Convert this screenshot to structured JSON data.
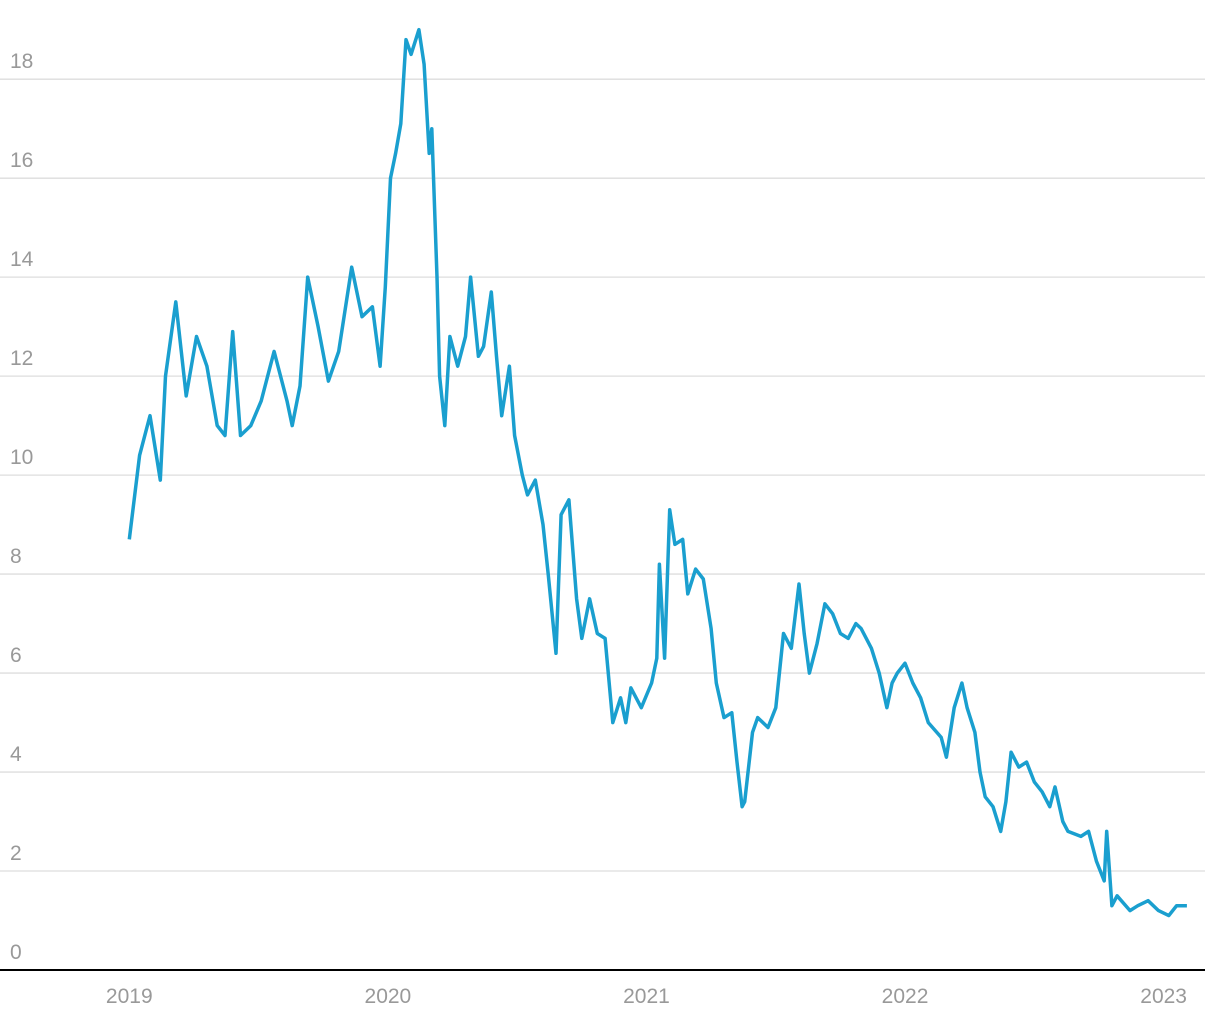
{
  "chart_data": {
    "type": "line",
    "color": "#1a9fcf",
    "grid": true,
    "xlim": [
      2018.5,
      2023.16
    ],
    "xticks": [
      2019,
      2020,
      2021,
      2022,
      2023
    ],
    "ylim": [
      0,
      19.6
    ],
    "yticks": [
      0,
      2,
      4,
      6,
      8,
      10,
      12,
      14,
      16,
      18
    ],
    "x": [
      2019.0,
      2019.04,
      2019.08,
      2019.12,
      2019.14,
      2019.18,
      2019.22,
      2019.26,
      2019.3,
      2019.34,
      2019.37,
      2019.4,
      2019.43,
      2019.47,
      2019.51,
      2019.56,
      2019.61,
      2019.63,
      2019.66,
      2019.69,
      2019.73,
      2019.77,
      2019.81,
      2019.86,
      2019.9,
      2019.94,
      2019.97,
      2019.99,
      2020.01,
      2020.03,
      2020.05,
      2020.07,
      2020.09,
      2020.12,
      2020.14,
      2020.16,
      2020.17,
      2020.19,
      2020.2,
      2020.22,
      2020.24,
      2020.27,
      2020.3,
      2020.32,
      2020.35,
      2020.37,
      2020.4,
      2020.42,
      2020.44,
      2020.47,
      2020.49,
      2020.52,
      2020.54,
      2020.57,
      2020.6,
      2020.62,
      2020.65,
      2020.67,
      2020.7,
      2020.73,
      2020.75,
      2020.78,
      2020.81,
      2020.84,
      2020.87,
      2020.9,
      2020.92,
      2020.94,
      2020.98,
      2021.02,
      2021.04,
      2021.05,
      2021.07,
      2021.09,
      2021.11,
      2021.14,
      2021.16,
      2021.19,
      2021.22,
      2021.25,
      2021.27,
      2021.3,
      2021.33,
      2021.35,
      2021.37,
      2021.38,
      2021.41,
      2021.43,
      2021.47,
      2021.5,
      2021.53,
      2021.56,
      2021.59,
      2021.61,
      2021.63,
      2021.66,
      2021.69,
      2021.72,
      2021.75,
      2021.78,
      2021.81,
      2021.83,
      2021.87,
      2021.9,
      2021.93,
      2021.95,
      2021.97,
      2022.0,
      2022.03,
      2022.06,
      2022.09,
      2022.14,
      2022.16,
      2022.19,
      2022.22,
      2022.24,
      2022.27,
      2022.29,
      2022.31,
      2022.34,
      2022.37,
      2022.39,
      2022.41,
      2022.44,
      2022.47,
      2022.5,
      2022.53,
      2022.56,
      2022.58,
      2022.61,
      2022.63,
      2022.68,
      2022.71,
      2022.74,
      2022.77,
      2022.78,
      2022.8,
      2022.82,
      2022.87,
      2022.9,
      2022.94,
      2022.98,
      2023.02,
      2023.05,
      2023.09
    ],
    "values": [
      8.7,
      10.4,
      11.2,
      9.9,
      12.0,
      13.5,
      11.6,
      12.8,
      12.2,
      11.0,
      10.8,
      12.9,
      10.8,
      11.0,
      11.5,
      12.5,
      11.5,
      11.0,
      11.8,
      14.0,
      13.0,
      11.9,
      12.5,
      14.2,
      13.2,
      13.4,
      12.2,
      13.8,
      16.0,
      16.5,
      17.1,
      18.8,
      18.5,
      19.0,
      18.3,
      16.5,
      17.0,
      14.0,
      12.0,
      11.0,
      12.8,
      12.2,
      12.8,
      14.0,
      12.4,
      12.6,
      13.7,
      12.4,
      11.2,
      12.2,
      10.8,
      10.0,
      9.6,
      9.9,
      9.0,
      8.0,
      6.4,
      9.2,
      9.5,
      7.5,
      6.7,
      7.5,
      6.8,
      6.7,
      5.0,
      5.5,
      5.0,
      5.7,
      5.3,
      5.8,
      6.3,
      8.2,
      6.3,
      9.3,
      8.6,
      8.7,
      7.6,
      8.1,
      7.9,
      6.9,
      5.8,
      5.1,
      5.2,
      4.2,
      3.3,
      3.4,
      4.8,
      5.1,
      4.9,
      5.3,
      6.8,
      6.5,
      7.8,
      6.8,
      6.0,
      6.6,
      7.4,
      7.2,
      6.8,
      6.7,
      7.0,
      6.9,
      6.5,
      6.0,
      5.3,
      5.8,
      6.0,
      6.2,
      5.8,
      5.5,
      5.0,
      4.7,
      4.3,
      5.3,
      5.8,
      5.3,
      4.8,
      4.0,
      3.5,
      3.3,
      2.8,
      3.4,
      4.4,
      4.1,
      4.2,
      3.8,
      3.6,
      3.3,
      3.7,
      3.0,
      2.8,
      2.7,
      2.8,
      2.2,
      1.8,
      2.8,
      1.3,
      1.5,
      1.2,
      1.3,
      1.4,
      1.2,
      1.1,
      1.3,
      1.3
    ]
  }
}
